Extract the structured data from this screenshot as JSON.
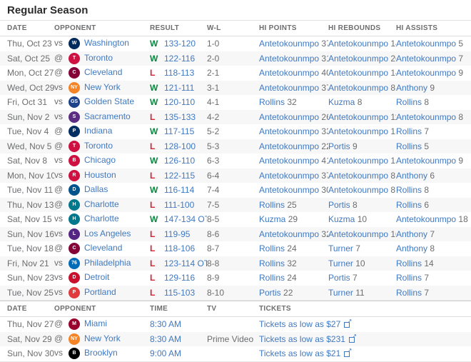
{
  "page": {
    "title": "Regular Season"
  },
  "colors": {
    "link_blue": "#3f79c2",
    "win_green": "#0b8640",
    "loss_red": "#d02537",
    "muted_gray": "#6c6d6f",
    "stripe": "#f7f7f7"
  },
  "icons": {
    "external_link_arrow": "↗"
  },
  "results": {
    "headers": [
      "DATE",
      "OPPONENT",
      "RESULT",
      "W-L",
      "HI POINTS",
      "HI REBOUNDS",
      "HI ASSISTS"
    ],
    "games": [
      {
        "date": "Thu, Oct 23",
        "prefix": "vs",
        "opponent": "Washington",
        "logo_color": "#002B5C",
        "logo_text": "W",
        "outcome": "W",
        "score": "133-120",
        "wl": "1-0",
        "hi_points": {
          "player": "Antetokounmpo",
          "value": "37"
        },
        "hi_rebounds": {
          "player": "Antetokounmpo",
          "value": "14"
        },
        "hi_assists": {
          "player": "Antetokounmpo",
          "value": "5"
        }
      },
      {
        "date": "Sat, Oct 25",
        "prefix": "@",
        "opponent": "Toronto",
        "logo_color": "#CE1141",
        "logo_text": "T",
        "outcome": "W",
        "score": "122-116",
        "wl": "2-0",
        "hi_points": {
          "player": "Antetokounmpo",
          "value": "31"
        },
        "hi_rebounds": {
          "player": "Antetokounmpo",
          "value": "20"
        },
        "hi_assists": {
          "player": "Antetokounmpo",
          "value": "7"
        }
      },
      {
        "date": "Mon, Oct 27",
        "prefix": "@",
        "opponent": "Cleveland",
        "logo_color": "#860038",
        "logo_text": "C",
        "outcome": "L",
        "score": "118-113",
        "wl": "2-1",
        "hi_points": {
          "player": "Antetokounmpo",
          "value": "40"
        },
        "hi_rebounds": {
          "player": "Antetokounmpo",
          "value": "14"
        },
        "hi_assists": {
          "player": "Antetokounmpo",
          "value": "9"
        }
      },
      {
        "date": "Wed, Oct 29",
        "prefix": "vs",
        "opponent": "New York",
        "logo_color": "#F58426",
        "logo_text": "NY",
        "outcome": "W",
        "score": "121-111",
        "wl": "3-1",
        "hi_points": {
          "player": "Antetokounmpo",
          "value": "37"
        },
        "hi_rebounds": {
          "player": "Antetokounmpo",
          "value": "8"
        },
        "hi_assists": {
          "player": "Anthony",
          "value": "9"
        }
      },
      {
        "date": "Fri, Oct 31",
        "prefix": "vs",
        "opponent": "Golden State",
        "logo_color": "#1D428A",
        "logo_text": "GS",
        "outcome": "W",
        "score": "120-110",
        "wl": "4-1",
        "hi_points": {
          "player": "Rollins",
          "value": "32"
        },
        "hi_rebounds": {
          "player": "Kuzma",
          "value": "8"
        },
        "hi_assists": {
          "player": "Rollins",
          "value": "8"
        }
      },
      {
        "date": "Sun, Nov 2",
        "prefix": "vs",
        "opponent": "Sacramento",
        "logo_color": "#5A2D81",
        "logo_text": "S",
        "outcome": "L",
        "score": "135-133",
        "wl": "4-2",
        "hi_points": {
          "player": "Antetokounmpo",
          "value": "26"
        },
        "hi_rebounds": {
          "player": "Antetokounmpo",
          "value": "11"
        },
        "hi_assists": {
          "player": "Antetokounmpo",
          "value": "8"
        }
      },
      {
        "date": "Tue, Nov 4",
        "prefix": "@",
        "opponent": "Indiana",
        "logo_color": "#002D62",
        "logo_text": "P",
        "outcome": "W",
        "score": "117-115",
        "wl": "5-2",
        "hi_points": {
          "player": "Antetokounmpo",
          "value": "33"
        },
        "hi_rebounds": {
          "player": "Antetokounmpo",
          "value": "13"
        },
        "hi_assists": {
          "player": "Rollins",
          "value": "7"
        }
      },
      {
        "date": "Wed, Nov 5",
        "prefix": "@",
        "opponent": "Toronto",
        "logo_color": "#CE1141",
        "logo_text": "T",
        "outcome": "L",
        "score": "128-100",
        "wl": "5-3",
        "hi_points": {
          "player": "Antetokounmpo",
          "value": "22"
        },
        "hi_rebounds": {
          "player": "Portis",
          "value": "9"
        },
        "hi_assists": {
          "player": "Rollins",
          "value": "5"
        }
      },
      {
        "date": "Sat, Nov 8",
        "prefix": "vs",
        "opponent": "Chicago",
        "logo_color": "#CE1141",
        "logo_text": "B",
        "outcome": "W",
        "score": "126-110",
        "wl": "6-3",
        "hi_points": {
          "player": "Antetokounmpo",
          "value": "41"
        },
        "hi_rebounds": {
          "player": "Antetokounmpo",
          "value": "15"
        },
        "hi_assists": {
          "player": "Antetokounmpo",
          "value": "9"
        }
      },
      {
        "date": "Mon, Nov 10",
        "prefix": "vs",
        "opponent": "Houston",
        "logo_color": "#CE1141",
        "logo_text": "R",
        "outcome": "L",
        "score": "122-115",
        "wl": "6-4",
        "hi_points": {
          "player": "Antetokounmpo",
          "value": "37"
        },
        "hi_rebounds": {
          "player": "Antetokounmpo",
          "value": "8"
        },
        "hi_assists": {
          "player": "Anthony",
          "value": "6"
        }
      },
      {
        "date": "Tue, Nov 11",
        "prefix": "@",
        "opponent": "Dallas",
        "logo_color": "#00538C",
        "logo_text": "D",
        "outcome": "W",
        "score": "116-114",
        "wl": "7-4",
        "hi_points": {
          "player": "Antetokounmpo",
          "value": "30"
        },
        "hi_rebounds": {
          "player": "Antetokounmpo",
          "value": "8"
        },
        "hi_assists": {
          "player": "Rollins",
          "value": "8"
        }
      },
      {
        "date": "Thu, Nov 13",
        "prefix": "@",
        "opponent": "Charlotte",
        "logo_color": "#00788C",
        "logo_text": "H",
        "outcome": "L",
        "score": "111-100",
        "wl": "7-5",
        "hi_points": {
          "player": "Rollins",
          "value": "25"
        },
        "hi_rebounds": {
          "player": "Portis",
          "value": "8"
        },
        "hi_assists": {
          "player": "Rollins",
          "value": "6"
        }
      },
      {
        "date": "Sat, Nov 15",
        "prefix": "vs",
        "opponent": "Charlotte",
        "logo_color": "#00788C",
        "logo_text": "H",
        "outcome": "W",
        "score": "147-134 OT",
        "wl": "8-5",
        "hi_points": {
          "player": "Kuzma",
          "value": "29"
        },
        "hi_rebounds": {
          "player": "Kuzma",
          "value": "10"
        },
        "hi_assists": {
          "player": "Antetokounmpo",
          "value": "18"
        }
      },
      {
        "date": "Sun, Nov 16",
        "prefix": "vs",
        "opponent": "Los Angeles",
        "logo_color": "#552583",
        "logo_text": "L",
        "outcome": "L",
        "score": "119-95",
        "wl": "8-6",
        "hi_points": {
          "player": "Antetokounmpo",
          "value": "32"
        },
        "hi_rebounds": {
          "player": "Antetokounmpo",
          "value": "10"
        },
        "hi_assists": {
          "player": "Anthony",
          "value": "7"
        }
      },
      {
        "date": "Tue, Nov 18",
        "prefix": "@",
        "opponent": "Cleveland",
        "logo_color": "#860038",
        "logo_text": "C",
        "outcome": "L",
        "score": "118-106",
        "wl": "8-7",
        "hi_points": {
          "player": "Rollins",
          "value": "24"
        },
        "hi_rebounds": {
          "player": "Turner",
          "value": "7"
        },
        "hi_assists": {
          "player": "Anthony",
          "value": "8"
        }
      },
      {
        "date": "Fri, Nov 21",
        "prefix": "vs",
        "opponent": "Philadelphia",
        "logo_color": "#006BB6",
        "logo_text": "76",
        "outcome": "L",
        "score": "123-114 OT",
        "wl": "8-8",
        "hi_points": {
          "player": "Rollins",
          "value": "32"
        },
        "hi_rebounds": {
          "player": "Turner",
          "value": "10"
        },
        "hi_assists": {
          "player": "Rollins",
          "value": "14"
        }
      },
      {
        "date": "Sun, Nov 23",
        "prefix": "vs",
        "opponent": "Detroit",
        "logo_color": "#C8102E",
        "logo_text": "D",
        "outcome": "L",
        "score": "129-116",
        "wl": "8-9",
        "hi_points": {
          "player": "Rollins",
          "value": "24"
        },
        "hi_rebounds": {
          "player": "Portis",
          "value": "7"
        },
        "hi_assists": {
          "player": "Rollins",
          "value": "7"
        }
      },
      {
        "date": "Tue, Nov 25",
        "prefix": "vs",
        "opponent": "Portland",
        "logo_color": "#E03A3E",
        "logo_text": "P",
        "outcome": "L",
        "score": "115-103",
        "wl": "8-10",
        "hi_points": {
          "player": "Portis",
          "value": "22"
        },
        "hi_rebounds": {
          "player": "Turner",
          "value": "11"
        },
        "hi_assists": {
          "player": "Rollins",
          "value": "7"
        }
      }
    ]
  },
  "upcoming": {
    "headers": [
      "DATE",
      "OPPONENT",
      "TIME",
      "TV",
      "TICKETS"
    ],
    "games": [
      {
        "date": "Thu, Nov 27",
        "prefix": "@",
        "opponent": "Miami",
        "logo_color": "#98002E",
        "logo_text": "M",
        "time": "8:30 AM",
        "tv": "",
        "tickets": "Tickets as low as $27"
      },
      {
        "date": "Sat, Nov 29",
        "prefix": "@",
        "opponent": "New York",
        "logo_color": "#F58426",
        "logo_text": "NY",
        "time": "8:30 AM",
        "tv": "Prime Video",
        "tickets": "Tickets as low as $231"
      },
      {
        "date": "Sun, Nov 30",
        "prefix": "vs",
        "opponent": "Brooklyn",
        "logo_color": "#000000",
        "logo_text": "B",
        "time": "9:00 AM",
        "tv": "",
        "tickets": "Tickets as low as $21"
      }
    ]
  }
}
